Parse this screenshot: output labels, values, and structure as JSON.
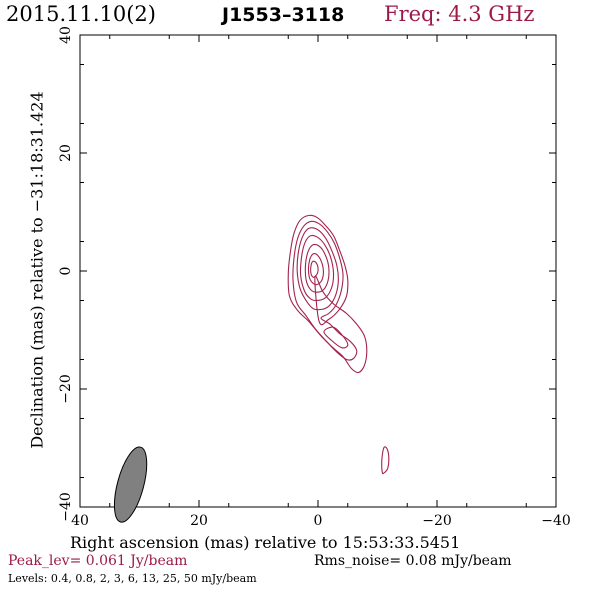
{
  "header": {
    "date": "2015.11.10(2)",
    "source": "J1553–3118",
    "freq": "Freq: 4.3 GHz"
  },
  "footer": {
    "peak": "Peak_lev=  0.061 Jy/beam",
    "rms": "Rms_noise= 0.08 mJy/beam",
    "levels": "Levels: 0.4, 0.8,   2,   3,   6,  13,  25,  50 mJy/beam"
  },
  "colors": {
    "contour": "#a3234f",
    "beam_fill": "#808080",
    "title_accent": "#9b1a4a"
  },
  "chart_data": {
    "type": "contour",
    "xlabel": "Right ascension (mas) relative to 15:53:33.5451",
    "ylabel": "Declination (mas) relative to −31:18:31.424",
    "xlim": [
      40,
      -40
    ],
    "ylim": [
      -40,
      40
    ],
    "x_ticks": [
      40,
      20,
      0,
      -20,
      -40
    ],
    "y_ticks": [
      -40,
      -20,
      0,
      20,
      40
    ],
    "x_tick_labels": [
      "40",
      "20",
      "0",
      "−20",
      "−40"
    ],
    "y_tick_labels": [
      "−40",
      "−20",
      "0",
      "20",
      "40"
    ],
    "contour_levels_mjy": [
      0.4,
      0.8,
      2,
      3,
      6,
      13,
      25,
      50
    ],
    "contours": [
      [
        [
          0.5,
          -1.0
        ],
        [
          -0.8,
          -3.5
        ],
        [
          -2.5,
          -5.5
        ],
        [
          -4.8,
          -7.2
        ],
        [
          -6.5,
          -9.0
        ],
        [
          -7.8,
          -11.0
        ],
        [
          -8.2,
          -13.5
        ],
        [
          -7.8,
          -16.0
        ],
        [
          -6.8,
          -17.2
        ],
        [
          -5.6,
          -16.5
        ],
        [
          -4.2,
          -14.5
        ],
        [
          -2.5,
          -13.0
        ],
        [
          -0.5,
          -11.0
        ],
        [
          1.5,
          -8.6
        ],
        [
          3.5,
          -6.6
        ],
        [
          4.8,
          -4.2
        ],
        [
          5.0,
          -0.5
        ],
        [
          4.6,
          3.5
        ],
        [
          4.0,
          6.5
        ],
        [
          3.0,
          8.6
        ],
        [
          1.6,
          9.4
        ],
        [
          0.2,
          9.1
        ],
        [
          -1.2,
          7.8
        ],
        [
          -2.6,
          6.0
        ],
        [
          -3.6,
          3.6
        ],
        [
          -4.5,
          1.0
        ],
        [
          -5.0,
          -1.5
        ],
        [
          -4.8,
          -4.2
        ],
        [
          -3.6,
          -6.5
        ],
        [
          -1.8,
          -8.2
        ],
        [
          -0.2,
          -8.6
        ]
      ],
      [
        [
          -0.5,
          -8.0
        ],
        [
          -2.0,
          -9.0
        ],
        [
          -3.5,
          -10.5
        ],
        [
          -5.5,
          -12.0
        ],
        [
          -6.5,
          -13.5
        ],
        [
          -6.0,
          -14.8
        ],
        [
          -4.8,
          -15.0
        ],
        [
          -3.0,
          -13.6
        ],
        [
          -1.5,
          -12.0
        ],
        [
          0.3,
          -10.0
        ],
        [
          2.0,
          -7.6
        ],
        [
          3.6,
          -5.3
        ],
        [
          4.2,
          -1.5
        ],
        [
          4.0,
          2.5
        ],
        [
          3.4,
          5.6
        ],
        [
          2.4,
          7.6
        ],
        [
          1.2,
          8.4
        ],
        [
          -0.2,
          8.0
        ],
        [
          -1.6,
          6.6
        ],
        [
          -2.8,
          4.6
        ],
        [
          -3.7,
          2.0
        ],
        [
          -4.2,
          -0.6
        ],
        [
          -3.9,
          -3.4
        ],
        [
          -3.0,
          -5.8
        ],
        [
          -1.8,
          -7.2
        ]
      ],
      [
        [
          -2.5,
          -9.5
        ],
        [
          -4.0,
          -10.8
        ],
        [
          -5.0,
          -12.5
        ],
        [
          -4.0,
          -13.0
        ],
        [
          -2.2,
          -11.7
        ],
        [
          -1.0,
          -10.3
        ]
      ],
      [
        [
          0.5,
          -6.5
        ],
        [
          -1.5,
          -6.2
        ],
        [
          -2.8,
          -4.5
        ],
        [
          -3.4,
          -2.0
        ],
        [
          -3.2,
          0.8
        ],
        [
          -2.3,
          3.5
        ],
        [
          -1.2,
          5.7
        ],
        [
          0.2,
          7.1
        ],
        [
          1.6,
          7.2
        ],
        [
          2.6,
          5.8
        ],
        [
          3.3,
          3.2
        ],
        [
          3.5,
          0.0
        ],
        [
          3.0,
          -3.0
        ],
        [
          1.8,
          -5.3
        ]
      ],
      [
        [
          0.4,
          -5.0
        ],
        [
          -1.2,
          -4.6
        ],
        [
          -2.3,
          -2.8
        ],
        [
          -2.6,
          -0.3
        ],
        [
          -2.1,
          2.4
        ],
        [
          -1.1,
          4.5
        ],
        [
          0.2,
          5.8
        ],
        [
          1.4,
          5.9
        ],
        [
          2.3,
          4.5
        ],
        [
          2.8,
          2.0
        ],
        [
          2.9,
          -0.8
        ],
        [
          2.3,
          -3.3
        ],
        [
          1.4,
          -4.6
        ]
      ],
      [
        [
          0.3,
          -3.6
        ],
        [
          -0.9,
          -3.2
        ],
        [
          -1.7,
          -1.6
        ],
        [
          -1.8,
          0.7
        ],
        [
          -1.2,
          2.8
        ],
        [
          -0.2,
          4.2
        ],
        [
          0.9,
          4.4
        ],
        [
          1.7,
          3.2
        ],
        [
          2.1,
          1.0
        ],
        [
          2.0,
          -1.5
        ],
        [
          1.3,
          -3.1
        ]
      ],
      [
        [
          0.4,
          -2.3
        ],
        [
          -0.5,
          -1.8
        ],
        [
          -0.9,
          -0.4
        ],
        [
          -0.7,
          1.2
        ],
        [
          0.0,
          2.6
        ],
        [
          0.8,
          2.9
        ],
        [
          1.4,
          1.9
        ],
        [
          1.6,
          0.1
        ],
        [
          1.3,
          -1.5
        ]
      ],
      [
        [
          0.6,
          -1.0
        ],
        [
          0.1,
          -0.4
        ],
        [
          0.0,
          0.6
        ],
        [
          0.4,
          1.5
        ],
        [
          0.9,
          1.6
        ],
        [
          1.2,
          0.8
        ],
        [
          1.2,
          -0.4
        ],
        [
          0.9,
          -1.0
        ]
      ],
      [
        [
          -11.0,
          -34.3
        ],
        [
          -11.7,
          -33.5
        ],
        [
          -11.9,
          -31.6
        ],
        [
          -11.6,
          -30.1
        ],
        [
          -11.1,
          -29.9
        ],
        [
          -10.8,
          -31.2
        ],
        [
          -10.7,
          -33.0
        ],
        [
          -10.8,
          -34.1
        ]
      ]
    ],
    "beam": {
      "x": 31.5,
      "y": -36.2,
      "major_mas": 6.5,
      "minor_mas": 2.2,
      "pa_deg": 15
    }
  }
}
